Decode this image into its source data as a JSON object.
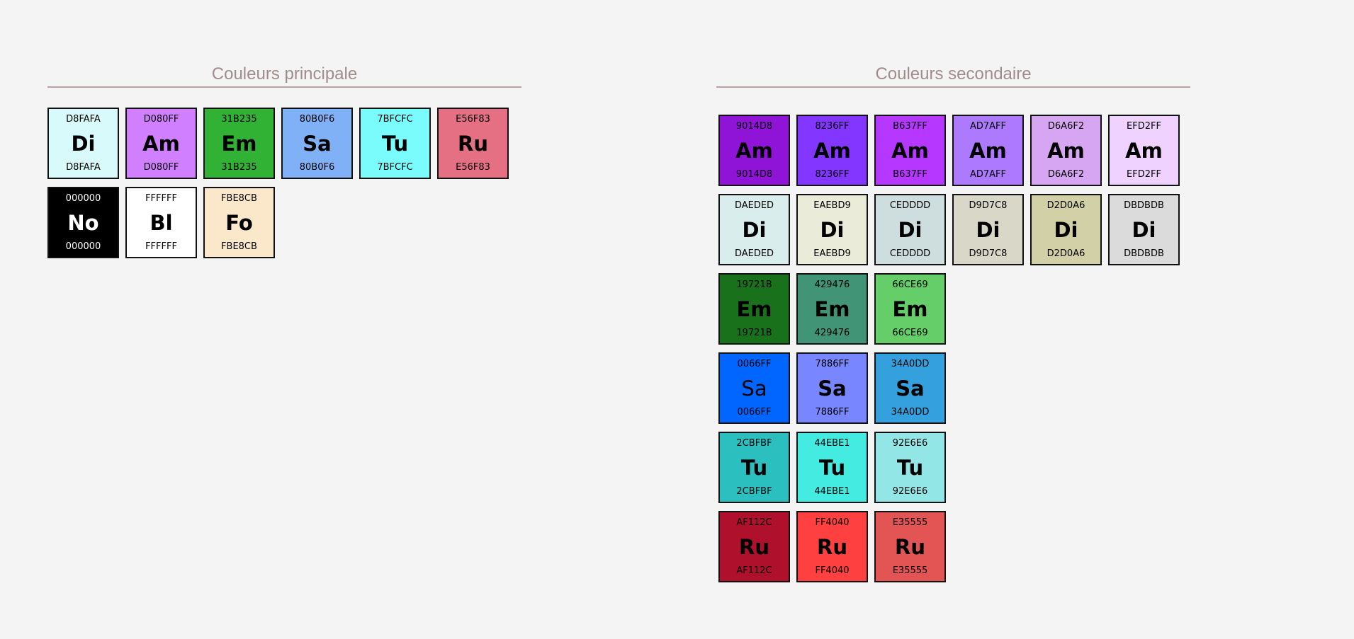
{
  "primary": {
    "title": "Couleurs principale",
    "rows": [
      [
        {
          "hex": "D8FAFA",
          "abbr": "Di",
          "color": "#D8FAFA"
        },
        {
          "hex": "D080FF",
          "abbr": "Am",
          "color": "#D080FF"
        },
        {
          "hex": "31B235",
          "abbr": "Em",
          "color": "#31B235"
        },
        {
          "hex": "80B0F6",
          "abbr": "Sa",
          "color": "#80B0F6"
        },
        {
          "hex": "7BFCFC",
          "abbr": "Tu",
          "color": "#7BFCFC"
        },
        {
          "hex": "E56F83",
          "abbr": "Ru",
          "color": "#E56F83"
        }
      ],
      [
        {
          "hex": "000000",
          "abbr": "No",
          "color": "#000000",
          "text": "#FFFFFF"
        },
        {
          "hex": "FFFFFF",
          "abbr": "Bl",
          "color": "#FFFFFF"
        },
        {
          "hex": "FBE8CB",
          "abbr": "Fo",
          "color": "#FBE8CB"
        }
      ]
    ]
  },
  "secondary": {
    "title": "Couleurs secondaire",
    "rows": [
      [
        {
          "hex": "9014D8",
          "abbr": "Am",
          "color": "#9014D8"
        },
        {
          "hex": "8236FF",
          "abbr": "Am",
          "color": "#8236FF"
        },
        {
          "hex": "B637FF",
          "abbr": "Am",
          "color": "#B637FF"
        },
        {
          "hex": "AD7AFF",
          "abbr": "Am",
          "color": "#AD7AFF"
        },
        {
          "hex": "D6A6F2",
          "abbr": "Am",
          "color": "#D6A6F2"
        },
        {
          "hex": "EFD2FF",
          "abbr": "Am",
          "color": "#EFD2FF"
        }
      ],
      [
        {
          "hex": "DAEDED",
          "abbr": "Di",
          "color": "#DAEDED"
        },
        {
          "hex": "EAEBD9",
          "abbr": "Di",
          "color": "#EAEBD9"
        },
        {
          "hex": "CEDDDD",
          "abbr": "Di",
          "color": "#CEDDDD"
        },
        {
          "hex": "D9D7C8",
          "abbr": "Di",
          "color": "#D9D7C8"
        },
        {
          "hex": "D2D0A6",
          "abbr": "Di",
          "color": "#D2D0A6"
        },
        {
          "hex": "DBDBDB",
          "abbr": "Di",
          "color": "#DBDBDB"
        }
      ],
      [
        {
          "hex": "19721B",
          "abbr": "Em",
          "color": "#19721B"
        },
        {
          "hex": "429476",
          "abbr": "Em",
          "color": "#429476"
        },
        {
          "hex": "66CE69",
          "abbr": "Em",
          "color": "#66CE69"
        }
      ],
      [
        {
          "hex": "0066FF",
          "abbr": "Sa",
          "color": "#0066FF",
          "weight": "normal"
        },
        {
          "hex": "7886FF",
          "abbr": "Sa",
          "color": "#7886FF"
        },
        {
          "hex": "34A0DD",
          "abbr": "Sa",
          "color": "#34A0DD"
        }
      ],
      [
        {
          "hex": "2CBFBF",
          "abbr": "Tu",
          "color": "#2CBFBF"
        },
        {
          "hex": "44EBE1",
          "abbr": "Tu",
          "color": "#44EBE1"
        },
        {
          "hex": "92E6E6",
          "abbr": "Tu",
          "color": "#92E6E6"
        }
      ],
      [
        {
          "hex": "AF112C",
          "abbr": "Ru",
          "color": "#AF112C"
        },
        {
          "hex": "FF4040",
          "abbr": "Ru",
          "color": "#FF4040"
        },
        {
          "hex": "E35555",
          "abbr": "Ru",
          "color": "#E35555"
        }
      ]
    ]
  }
}
